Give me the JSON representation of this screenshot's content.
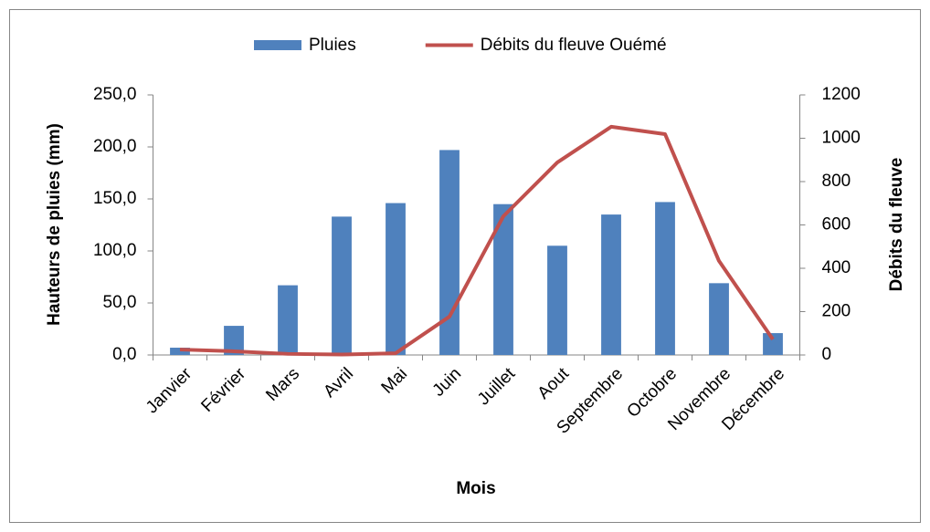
{
  "chart_data": {
    "type": "bar_line",
    "x_label": "Mois",
    "y_label": "Hauteurs de pluies (mm)",
    "y2_label": "Débits du fleuve",
    "categories": [
      "Janvier",
      "Février",
      "Mars",
      "Avril",
      "Mai",
      "Juin",
      "Juillet",
      "Aout",
      "Septembre",
      "Octobre",
      "Novembre",
      "Décembre"
    ],
    "series": [
      {
        "name": "Pluies",
        "type": "bar",
        "color": "#4f81bd",
        "values": [
          7,
          28,
          67,
          133,
          146,
          197,
          145,
          105,
          135,
          147,
          69,
          21
        ]
      },
      {
        "name": "Débits du fleuve Ouémé",
        "type": "line",
        "axis": "y2",
        "color": "#c0504d",
        "values": [
          25,
          17,
          5,
          2,
          8,
          177,
          640,
          888,
          1053,
          1019,
          434,
          72
        ]
      }
    ],
    "ylim": [
      0,
      250
    ],
    "yticks": [
      {
        "value": 0,
        "label": "0,0"
      },
      {
        "value": 50,
        "label": "50,0"
      },
      {
        "value": 100,
        "label": "100,0"
      },
      {
        "value": 150,
        "label": "150,0"
      },
      {
        "value": 200,
        "label": "200,0"
      },
      {
        "value": 250,
        "label": "250,0"
      }
    ],
    "y2lim": [
      0,
      1200
    ],
    "y2ticks": [
      0,
      200,
      400,
      600,
      800,
      1000,
      1200
    ],
    "legend": "top"
  }
}
